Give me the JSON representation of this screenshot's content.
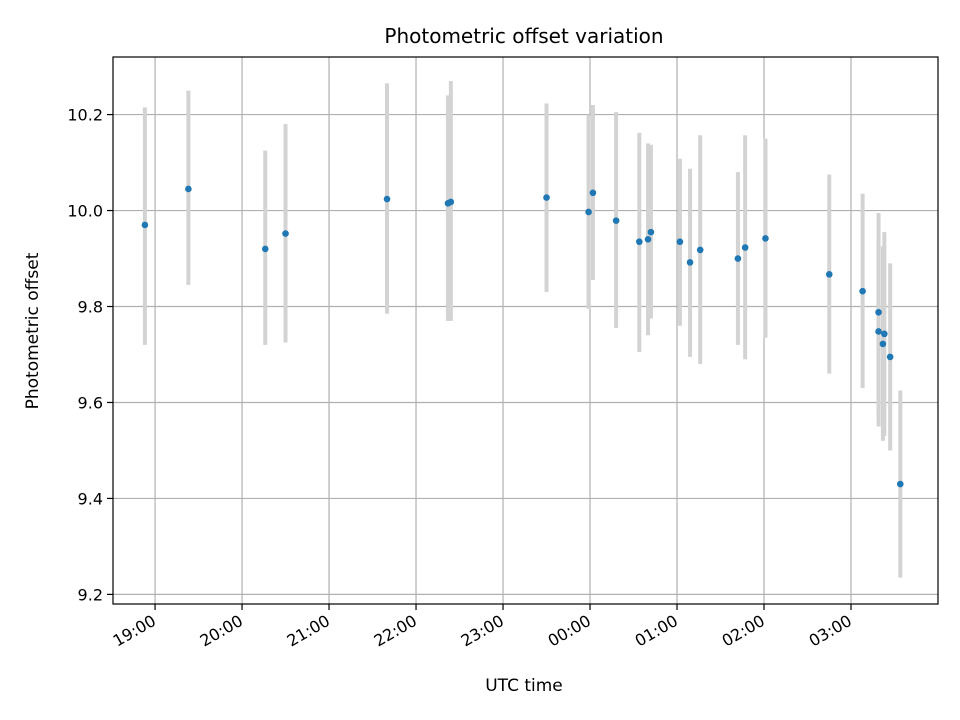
{
  "chart_data": {
    "type": "scatter",
    "title": "Photometric offset variation",
    "xlabel": "UTC time",
    "ylabel": "Photometric offset",
    "ylim": [
      9.18,
      10.32
    ],
    "xlim": [
      "18:31",
      "04:00"
    ],
    "grid": true,
    "legend": "none",
    "x_ticks": [
      "19:00",
      "20:00",
      "21:00",
      "22:00",
      "23:00",
      "00:00",
      "01:00",
      "02:00",
      "03:00"
    ],
    "y_ticks": [
      "9.2",
      "9.4",
      "9.6",
      "9.8",
      "10.0",
      "10.2"
    ],
    "colors": {
      "point": "#1f77b4",
      "errorbar": "#d3d3d3",
      "grid": "#b0b0b0"
    },
    "series": [
      {
        "points": [
          {
            "x": "18:53",
            "y": 9.97,
            "y_low": 9.72,
            "y_high": 10.215
          },
          {
            "x": "19:23",
            "y": 10.045,
            "y_low": 9.845,
            "y_high": 10.25
          },
          {
            "x": "20:16",
            "y": 9.92,
            "y_low": 9.72,
            "y_high": 10.125
          },
          {
            "x": "20:30",
            "y": 9.952,
            "y_low": 9.725,
            "y_high": 10.18
          },
          {
            "x": "21:40",
            "y": 10.024,
            "y_low": 9.785,
            "y_high": 10.265
          },
          {
            "x": "22:22",
            "y": 10.015,
            "y_low": 9.77,
            "y_high": 10.24
          },
          {
            "x": "22:24",
            "y": 10.018,
            "y_low": 9.77,
            "y_high": 10.27
          },
          {
            "x": "23:30",
            "y": 10.027,
            "y_low": 9.83,
            "y_high": 10.223
          },
          {
            "x": "23:59",
            "y": 9.997,
            "y_low": 9.795,
            "y_high": 10.2
          },
          {
            "x": "00:02",
            "y": 10.037,
            "y_low": 9.855,
            "y_high": 10.22
          },
          {
            "x": "00:18",
            "y": 9.979,
            "y_low": 9.755,
            "y_high": 10.205
          },
          {
            "x": "00:34",
            "y": 9.935,
            "y_low": 9.705,
            "y_high": 10.162
          },
          {
            "x": "00:40",
            "y": 9.94,
            "y_low": 9.74,
            "y_high": 10.14
          },
          {
            "x": "00:42",
            "y": 9.955,
            "y_low": 9.775,
            "y_high": 10.137
          },
          {
            "x": "01:02",
            "y": 9.935,
            "y_low": 9.76,
            "y_high": 10.108
          },
          {
            "x": "01:09",
            "y": 9.892,
            "y_low": 9.695,
            "y_high": 10.087
          },
          {
            "x": "01:16",
            "y": 9.918,
            "y_low": 9.68,
            "y_high": 10.157
          },
          {
            "x": "01:42",
            "y": 9.9,
            "y_low": 9.72,
            "y_high": 10.08
          },
          {
            "x": "01:47",
            "y": 9.923,
            "y_low": 9.69,
            "y_high": 10.157
          },
          {
            "x": "02:01",
            "y": 9.942,
            "y_low": 9.735,
            "y_high": 10.15
          },
          {
            "x": "02:45",
            "y": 9.867,
            "y_low": 9.66,
            "y_high": 10.075
          },
          {
            "x": "03:08",
            "y": 9.832,
            "y_low": 9.63,
            "y_high": 10.035
          },
          {
            "x": "03:19",
            "y": 9.788,
            "y_low": 9.58,
            "y_high": 9.995
          },
          {
            "x": "03:19",
            "y": 9.748,
            "y_low": 9.55,
            "y_high": 9.93
          },
          {
            "x": "03:22",
            "y": 9.722,
            "y_low": 9.52,
            "y_high": 9.925
          },
          {
            "x": "03:23",
            "y": 9.743,
            "y_low": 9.53,
            "y_high": 9.955
          },
          {
            "x": "03:27",
            "y": 9.695,
            "y_low": 9.5,
            "y_high": 9.89
          },
          {
            "x": "03:34",
            "y": 9.43,
            "y_low": 9.235,
            "y_high": 9.625
          }
        ]
      }
    ]
  }
}
